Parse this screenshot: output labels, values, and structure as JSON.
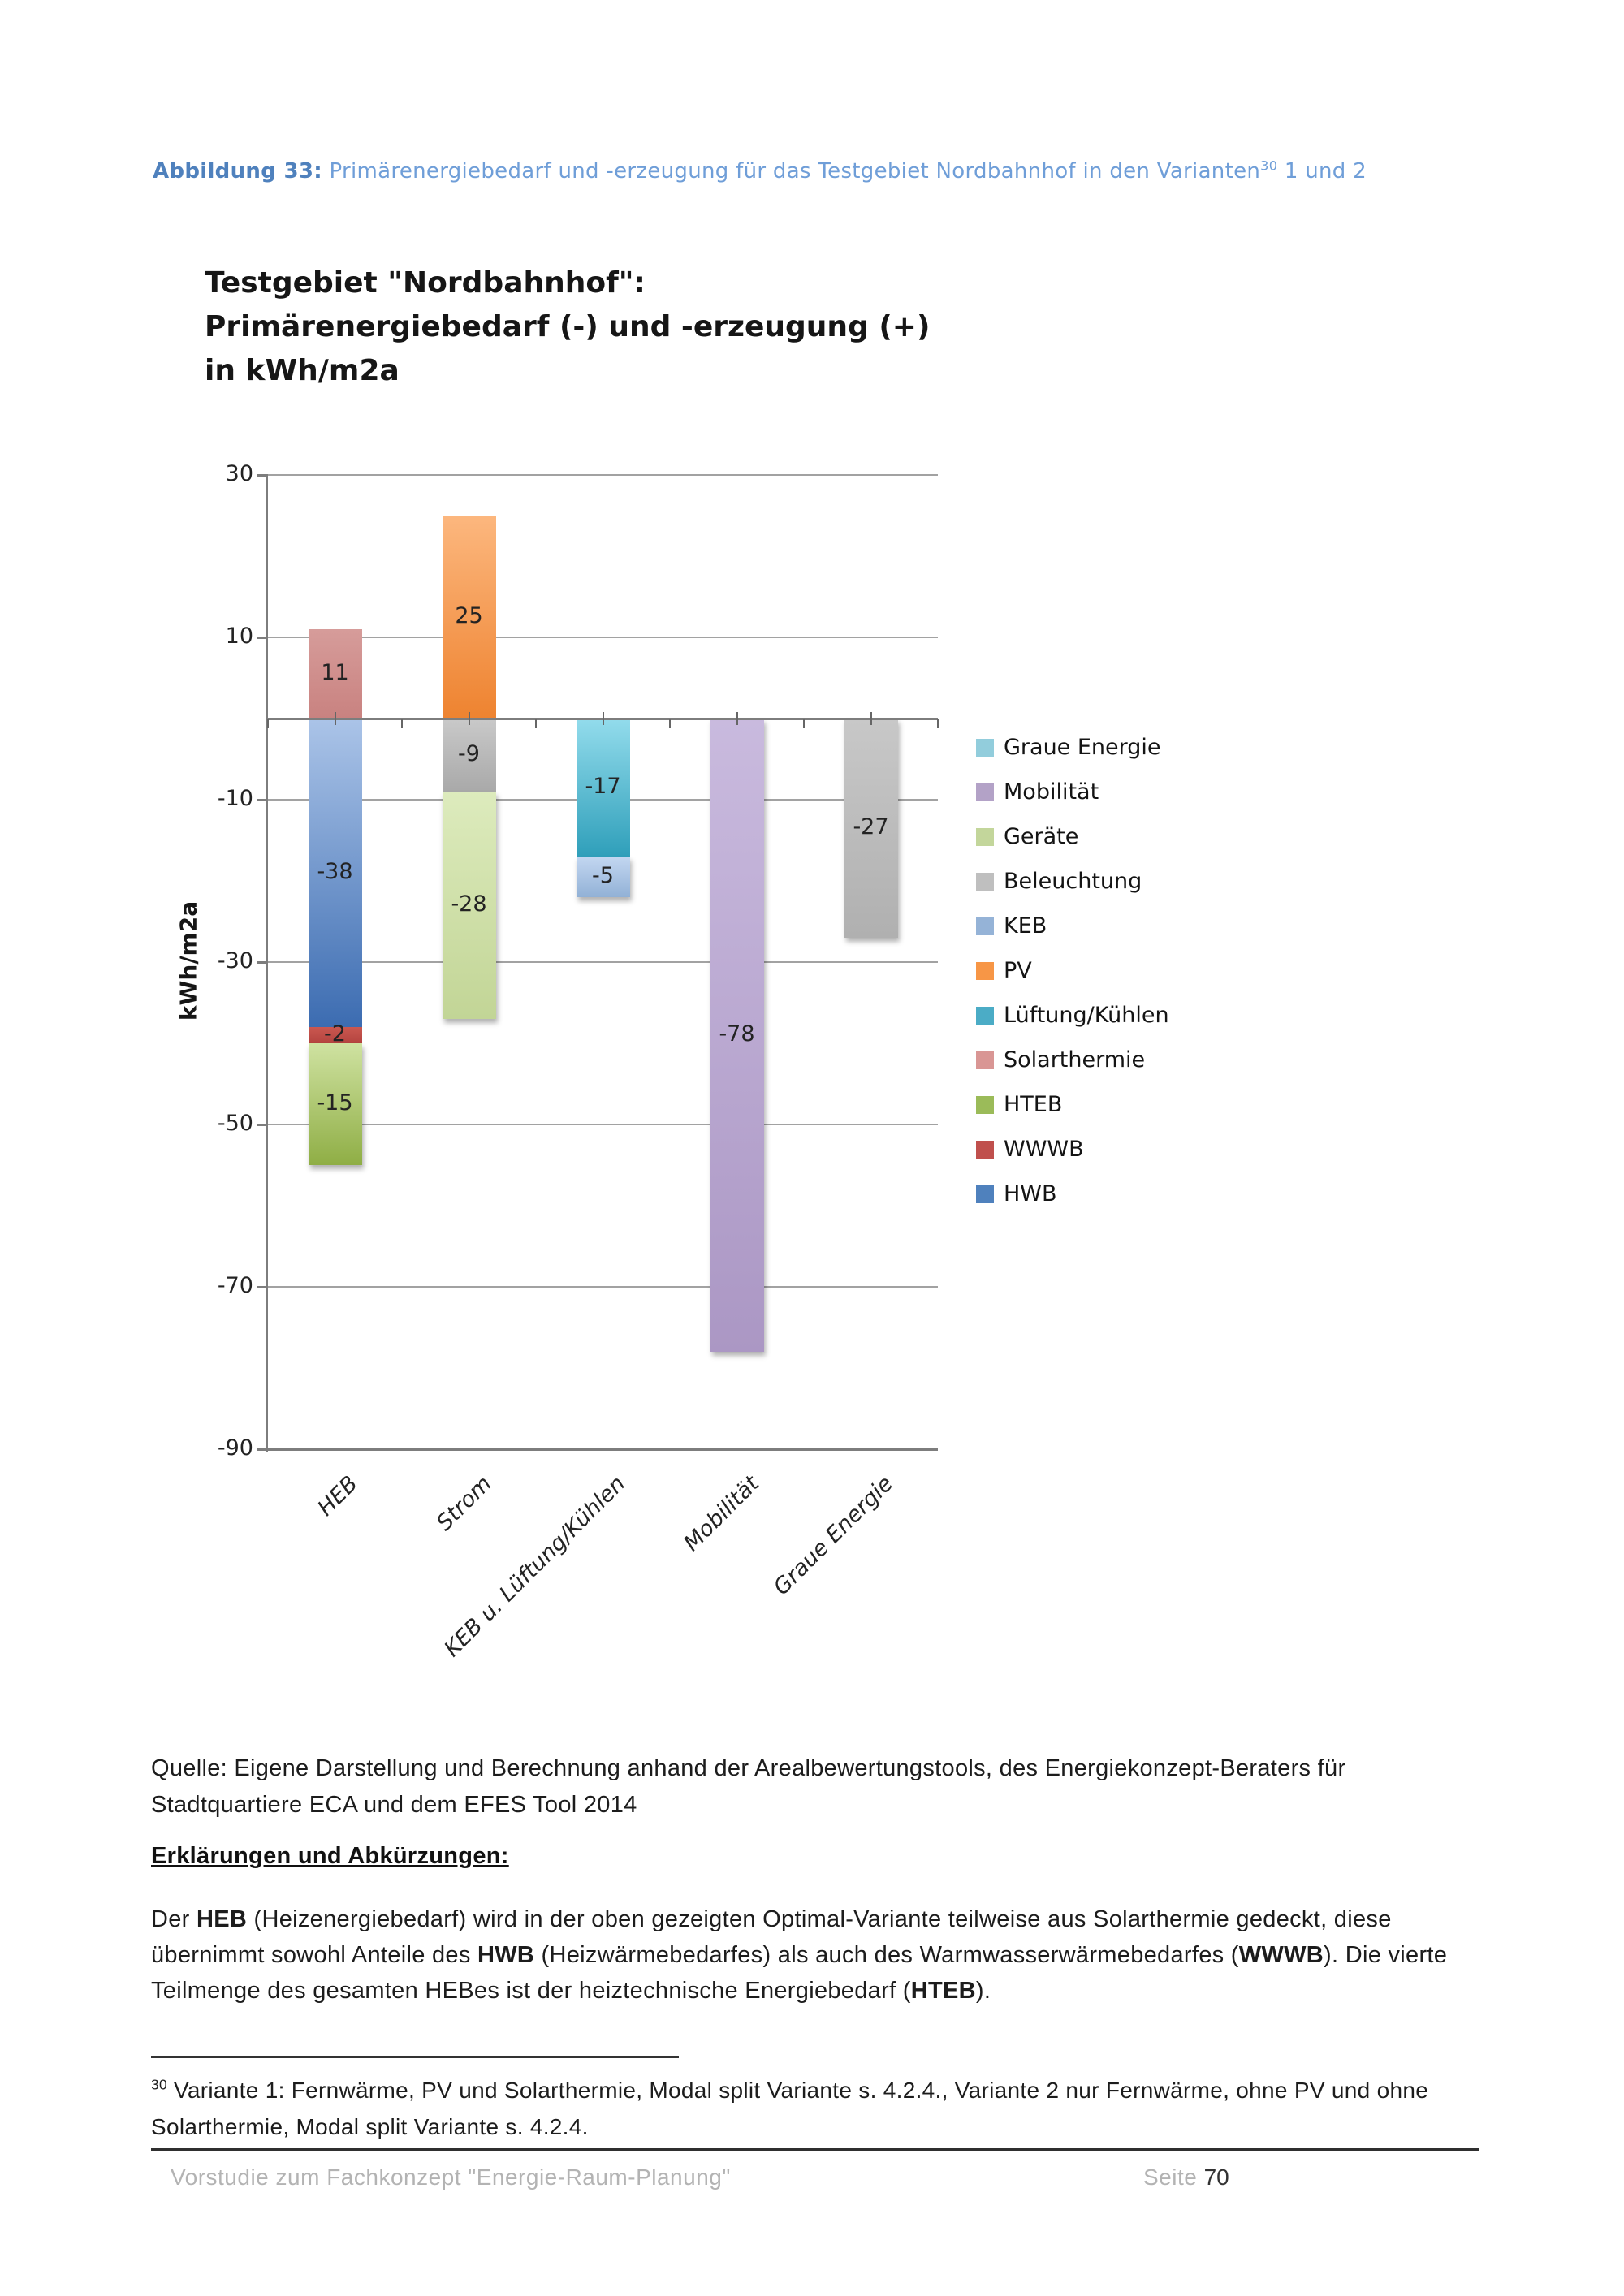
{
  "caption": {
    "runs": [
      {
        "t": "Abbildung 33:",
        "b": true,
        "c": "#4f81bd"
      },
      {
        "t": " Primärenergiebedarf und -erzeugung für das Testgebiet Nordbahnhof in den Varianten",
        "c": "#6f9ed8"
      },
      {
        "t": "30",
        "sup": true,
        "c": "#6f9ed8"
      },
      {
        "t": " 1 und 2",
        "c": "#6f9ed8"
      }
    ]
  },
  "figure": {
    "title_lines": [
      "Testgebiet \"Nordbahnhof\":",
      "Primärenergiebedarf (-) und -erzeugung (+)",
      "in kWh/m2a"
    ],
    "y_axis_title": "kWh/m2a",
    "series_styles": {
      "Graue Energie": {
        "legend": "#92cddc",
        "top": "#c8c8c8",
        "bottom": "#b0b0b0"
      },
      "Mobilität": {
        "legend": "#b3a2c7",
        "top": "#c9bade",
        "bottom": "#ab97c4"
      },
      "Geräte": {
        "legend": "#c3d69b",
        "top": "#ddebbd",
        "bottom": "#c2d596"
      },
      "Beleuchtung": {
        "legend": "#bfbfbf",
        "top": "#c9c9c9",
        "bottom": "#a9a9a9"
      },
      "KEB": {
        "legend": "#95b3d7",
        "top": "#c3d7f1",
        "bottom": "#92b1d6"
      },
      "PV": {
        "legend": "#f79646",
        "top": "#fcb77e",
        "bottom": "#ee8330"
      },
      "Lüftung/Kühlen": {
        "legend": "#4bacc6",
        "top": "#93dcec",
        "bottom": "#2f9fba"
      },
      "Solarthermie": {
        "legend": "#d99694",
        "top": "#d69c9a",
        "bottom": "#c98280"
      },
      "HTEB": {
        "legend": "#9bbb59",
        "top": "#cfe2a1",
        "bottom": "#8fae45"
      },
      "WWWB": {
        "legend": "#c0504d",
        "top": "#ca5850",
        "bottom": "#b4433f"
      },
      "HWB": {
        "legend": "#4f81bd",
        "top": "#abc4e8",
        "bottom": "#3c6cb1"
      }
    },
    "label_color": "#232323"
  },
  "chart_data": {
    "type": "bar",
    "stacked": true,
    "title": "Testgebiet \"Nordbahnhof\": Primärenergiebedarf (-) und -erzeugung (+) in kWh/m2a",
    "xlabel": "",
    "ylabel": "kWh/m2a",
    "ylim": [
      -90,
      30
    ],
    "yticks": [
      30,
      10,
      -10,
      -30,
      -50,
      -70,
      -90
    ],
    "grid": true,
    "legend_position": "right",
    "categories": [
      "HEB",
      "Strom",
      "KEB u. Lüftung/Kühlen",
      "Mobilität",
      "Graue Energie"
    ],
    "series": [
      {
        "name": "Graue Energie",
        "values": [
          0,
          0,
          0,
          0,
          -27
        ]
      },
      {
        "name": "Mobilität",
        "values": [
          0,
          0,
          0,
          -78,
          0
        ]
      },
      {
        "name": "Geräte",
        "values": [
          0,
          -28,
          0,
          0,
          0
        ]
      },
      {
        "name": "Beleuchtung",
        "values": [
          0,
          -9,
          0,
          0,
          0
        ]
      },
      {
        "name": "KEB",
        "values": [
          0,
          0,
          -5,
          0,
          0
        ]
      },
      {
        "name": "PV",
        "values": [
          0,
          25,
          0,
          0,
          0
        ]
      },
      {
        "name": "Lüftung/Kühlen",
        "values": [
          0,
          0,
          -17,
          0,
          0
        ]
      },
      {
        "name": "Solarthermie",
        "values": [
          11,
          0,
          0,
          0,
          0
        ]
      },
      {
        "name": "HTEB",
        "values": [
          -15,
          0,
          0,
          0,
          0
        ]
      },
      {
        "name": "WWWB",
        "values": [
          -2,
          0,
          0,
          0,
          0
        ]
      },
      {
        "name": "HWB",
        "values": [
          -38,
          0,
          0,
          0,
          0
        ]
      }
    ]
  },
  "quelle": "Quelle: Eigene Darstellung und Berechnung anhand der Arealbewertungstools, des Energiekonzept-Beraters für Stadtquartiere ECA und dem EFES Tool 2014",
  "erklaerungen": {
    "heading": "Erklärungen und Abkürzungen:",
    "runs": [
      {
        "t": "Der "
      },
      {
        "t": "HEB",
        "b": true
      },
      {
        "t": " (Heizenergiebedarf) wird in der oben gezeigten Optimal-Variante teilweise aus Solarthermie gedeckt, diese übernimmt sowohl Anteile des "
      },
      {
        "t": "HWB",
        "b": true
      },
      {
        "t": " (Heizwärmebedarfes) als auch des Warmwasserwärmebedarfes ("
      },
      {
        "t": "WWWB",
        "b": true
      },
      {
        "t": "). Die vierte Teilmenge des gesamten HEBes ist der heiztechnische Energiebedarf ("
      },
      {
        "t": "HTEB",
        "b": true
      },
      {
        "t": ")."
      }
    ]
  },
  "footnote": {
    "runs": [
      {
        "t": "30",
        "sup": true
      },
      {
        "t": " Variante 1: Fernwärme, PV und Solarthermie, Modal split Variante s. 4.2.4., Variante 2 nur Fernwärme, ohne PV und ohne Solarthermie, Modal split Variante s. 4.2.4."
      }
    ]
  },
  "footer": {
    "left": "Vorstudie zum Fachkonzept \"Energie-Raum-Planung\"",
    "page_label": "Seite ",
    "page_number": "70"
  }
}
